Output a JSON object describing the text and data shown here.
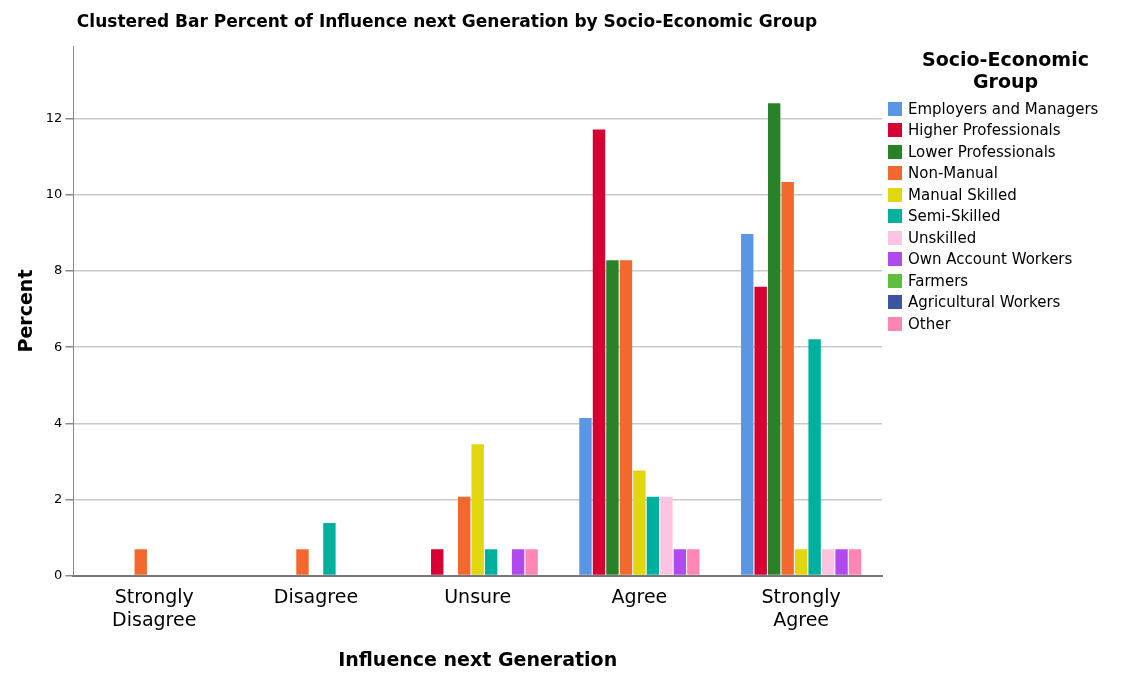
{
  "chart_data": {
    "type": "bar",
    "title": "Clustered Bar Percent of Influence next Generation by Socio-Economic Group",
    "xlabel": "Influence next Generation",
    "ylabel": "Percent",
    "legend_title": "Socio-Economic Group",
    "categories": [
      "Strongly Disagree",
      "Disagree",
      "Unsure",
      "Agree",
      "Strongly Agree"
    ],
    "series": [
      {
        "name": "Employers and Managers",
        "color": "#5a96e3",
        "values": [
          0,
          0,
          0,
          4.14,
          8.97
        ]
      },
      {
        "name": "Higher Professionals",
        "color": "#d70033",
        "values": [
          0,
          0,
          0.69,
          11.72,
          7.59
        ]
      },
      {
        "name": "Lower Professionals",
        "color": "#2a8228",
        "values": [
          0,
          0,
          0,
          8.28,
          12.41
        ]
      },
      {
        "name": "Non-Manual",
        "color": "#f2682e",
        "values": [
          0.69,
          0.69,
          2.07,
          8.28,
          10.34
        ]
      },
      {
        "name": "Manual Skilled",
        "color": "#e1d60f",
        "values": [
          0,
          0,
          3.45,
          2.76,
          0.69
        ]
      },
      {
        "name": "Semi-Skilled",
        "color": "#00b09e",
        "values": [
          0,
          1.38,
          0.69,
          2.07,
          6.21
        ]
      },
      {
        "name": "Unskilled",
        "color": "#fdc3e0",
        "values": [
          0,
          0,
          0,
          2.07,
          0.69
        ]
      },
      {
        "name": "Own Account Workers",
        "color": "#b14aee",
        "values": [
          0,
          0,
          0.69,
          0.69,
          0.69
        ]
      },
      {
        "name": "Farmers",
        "color": "#5dbf3d",
        "values": [
          null,
          null,
          null,
          null,
          null
        ]
      },
      {
        "name": "Agricultural Workers",
        "color": "#3a55a3",
        "values": [
          null,
          null,
          null,
          null,
          null
        ]
      },
      {
        "name": "Other",
        "color": "#fd86b4",
        "values": [
          0,
          0,
          0.69,
          0.69,
          0.69
        ]
      }
    ],
    "ylim": [
      0,
      13.9
    ],
    "yticks": [
      0,
      2,
      4,
      6,
      8,
      10,
      12
    ],
    "grid": "y",
    "legend": "right"
  }
}
